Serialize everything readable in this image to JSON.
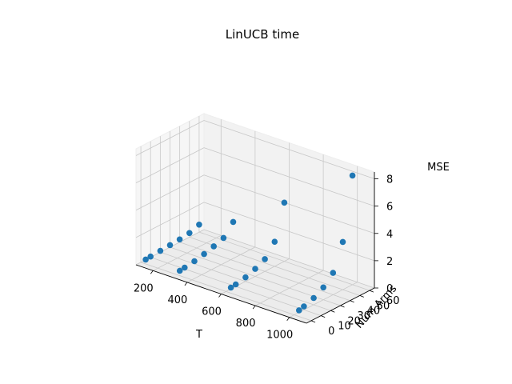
{
  "chart_data": {
    "type": "scatter3d",
    "title": "LinUCB time",
    "xlabel": "T",
    "ylabel": "Num Arms",
    "zlabel": "MSE",
    "xticks": [
      "200",
      "400",
      "600",
      "800",
      "1000"
    ],
    "yticks": [
      "0",
      "10",
      "20",
      "30",
      "40",
      "50",
      "60"
    ],
    "zticks": [
      "0",
      "2",
      "4",
      "6",
      "8"
    ],
    "xlim": [
      100,
      1100
    ],
    "ylim": [
      -5,
      65
    ],
    "zlim": [
      0,
      8.5
    ],
    "grid": true,
    "marker_color": "#1f77b4",
    "points": [
      {
        "x": 100,
        "y": 5,
        "z": 0.02
      },
      {
        "x": 100,
        "y": 10,
        "z": 0.05
      },
      {
        "x": 100,
        "y": 20,
        "z": 0.1
      },
      {
        "x": 100,
        "y": 30,
        "z": 0.15
      },
      {
        "x": 100,
        "y": 40,
        "z": 0.2
      },
      {
        "x": 100,
        "y": 50,
        "z": 0.3
      },
      {
        "x": 100,
        "y": 60,
        "z": 0.55
      },
      {
        "x": 300,
        "y": 5,
        "z": 0.05
      },
      {
        "x": 300,
        "y": 10,
        "z": 0.1
      },
      {
        "x": 300,
        "y": 20,
        "z": 0.2
      },
      {
        "x": 300,
        "y": 30,
        "z": 0.35
      },
      {
        "x": 300,
        "y": 40,
        "z": 0.55
      },
      {
        "x": 300,
        "y": 50,
        "z": 0.8
      },
      {
        "x": 300,
        "y": 60,
        "z": 1.6
      },
      {
        "x": 600,
        "y": 5,
        "z": 0.1
      },
      {
        "x": 600,
        "y": 10,
        "z": 0.15
      },
      {
        "x": 600,
        "y": 20,
        "z": 0.3
      },
      {
        "x": 600,
        "y": 30,
        "z": 0.55
      },
      {
        "x": 600,
        "y": 40,
        "z": 0.9
      },
      {
        "x": 600,
        "y": 50,
        "z": 1.8
      },
      {
        "x": 600,
        "y": 60,
        "z": 4.3
      },
      {
        "x": 1000,
        "y": 5,
        "z": 0.15
      },
      {
        "x": 1000,
        "y": 10,
        "z": 0.25
      },
      {
        "x": 1000,
        "y": 20,
        "z": 0.5
      },
      {
        "x": 1000,
        "y": 30,
        "z": 0.9
      },
      {
        "x": 1000,
        "y": 40,
        "z": 1.6
      },
      {
        "x": 1000,
        "y": 50,
        "z": 3.5
      },
      {
        "x": 1000,
        "y": 60,
        "z": 8.0
      }
    ]
  }
}
